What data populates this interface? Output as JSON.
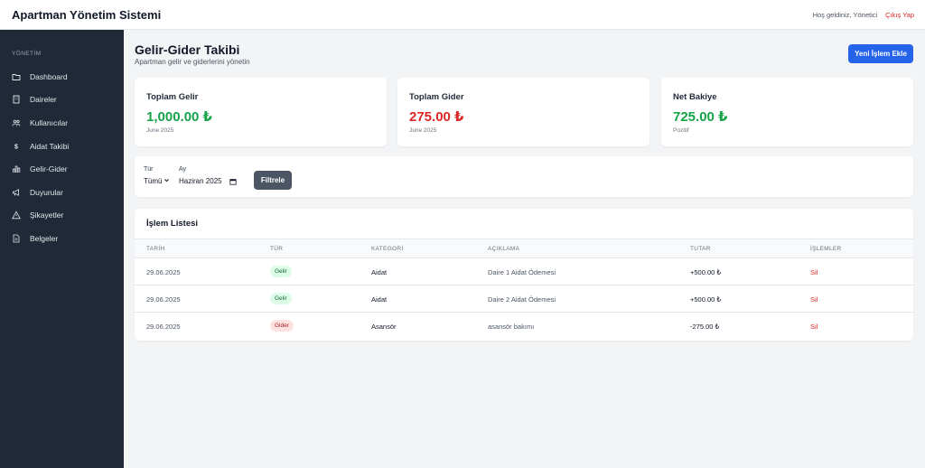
{
  "header": {
    "app_title": "Apartman Yönetim Sistemi",
    "welcome": "Hoş geldiniz, Yönetici",
    "logout": "Çıkış Yap"
  },
  "sidebar": {
    "section": "YÖNETİM",
    "items": [
      {
        "label": "Dashboard",
        "icon": "folder-icon"
      },
      {
        "label": "Daireler",
        "icon": "building-icon"
      },
      {
        "label": "Kullanıcılar",
        "icon": "users-icon"
      },
      {
        "label": "Aidat Takibi",
        "icon": "dollar-icon"
      },
      {
        "label": "Gelir-Gider",
        "icon": "chart-icon"
      },
      {
        "label": "Duyurular",
        "icon": "megaphone-icon"
      },
      {
        "label": "Şikayetler",
        "icon": "warning-icon"
      },
      {
        "label": "Belgeler",
        "icon": "document-icon"
      }
    ]
  },
  "page": {
    "title": "Gelir-Gider Takibi",
    "subtitle": "Apartman gelir ve giderlerini yönetin",
    "new_button": "Yeni İşlem Ekle"
  },
  "summary": [
    {
      "label": "Toplam Gelir",
      "value": "1,000.00 ₺",
      "note": "June 2025",
      "color": "#16a34a"
    },
    {
      "label": "Toplam Gider",
      "value": "275.00 ₺",
      "note": "June 2025",
      "color": "#dc2626"
    },
    {
      "label": "Net Bakiye",
      "value": "725.00 ₺",
      "note": "Pozitif",
      "color": "#16a34a"
    }
  ],
  "filter": {
    "type_label": "Tür",
    "type_value": "Tümü",
    "month_label": "Ay",
    "month_value": "Haziran 2025",
    "button": "Filtrele"
  },
  "table": {
    "title": "İşlem Listesi",
    "columns": [
      "TARİH",
      "TÜR",
      "KATEGORİ",
      "AÇIKLAMA",
      "TUTAR",
      "İŞLEMLER"
    ],
    "rows": [
      {
        "date": "29.06.2025",
        "type": "Gelir",
        "category": "Aidat",
        "description": "Daire 1 Aidat Ödemesi",
        "amount": "+500.00 ₺",
        "action": "Sil"
      },
      {
        "date": "29.06.2025",
        "type": "Gelir",
        "category": "Aidat",
        "description": "Daire 2 Aidat Ödemesi",
        "amount": "+500.00 ₺",
        "action": "Sil"
      },
      {
        "date": "29.06.2025",
        "type": "Gider",
        "category": "Asansör",
        "description": "asansör bakımı",
        "amount": "-275.00 ₺",
        "action": "Sil"
      }
    ]
  },
  "colors": {
    "sidebar_bg": "#1f2937",
    "primary": "#2563eb",
    "income": "#16a34a",
    "expense": "#dc2626"
  }
}
